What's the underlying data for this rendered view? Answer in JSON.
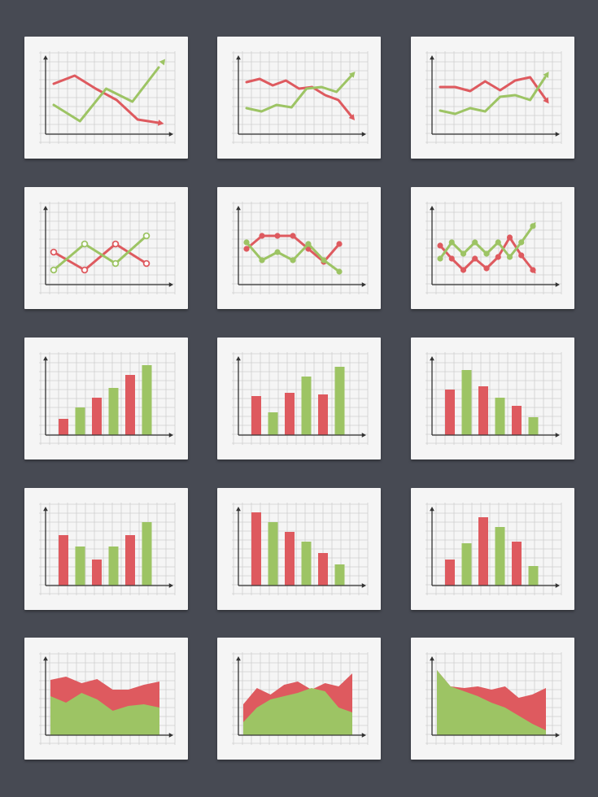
{
  "colors": {
    "background": "#474a53",
    "card": "#f5f5f5",
    "grid": "#cfcfcf",
    "axis": "#333333",
    "red": "#de5a5f",
    "green": "#9dc464"
  },
  "chart_data": [
    {
      "type": "line",
      "series": [
        {
          "color": "red",
          "values": [
            6.2,
            7.2,
            5.6,
            4.2,
            1.8,
            1.4
          ],
          "arrow": true
        },
        {
          "color": "green",
          "values": [
            3.6,
            1.6,
            5.6,
            4.0,
            8.2
          ],
          "arrow": true
        }
      ]
    },
    {
      "type": "line",
      "series": [
        {
          "color": "red",
          "values": [
            6.4,
            6.8,
            6.0,
            6.6,
            5.6,
            5.8,
            4.8,
            4.2,
            2.2
          ],
          "arrow": true
        },
        {
          "color": "green",
          "values": [
            3.2,
            2.8,
            3.6,
            3.3,
            5.6,
            5.8,
            5.2,
            7.2
          ],
          "arrow": true
        }
      ]
    },
    {
      "type": "line",
      "series": [
        {
          "color": "red",
          "values": [
            5.8,
            5.8,
            5.3,
            6.5,
            5.4,
            6.6,
            7.0,
            4.4
          ],
          "arrow": true
        },
        {
          "color": "green",
          "values": [
            2.9,
            2.5,
            3.2,
            2.8,
            4.6,
            4.8,
            4.2,
            7.0
          ],
          "arrow": true
        }
      ]
    },
    {
      "type": "line",
      "markers": true,
      "series": [
        {
          "color": "red",
          "values": [
            4.0,
            1.8,
            5.0,
            2.6
          ],
          "arrow": false
        },
        {
          "color": "green",
          "values": [
            1.8,
            5.0,
            2.6,
            6.0
          ],
          "arrow": false
        }
      ]
    },
    {
      "type": "line",
      "markers": true,
      "series": [
        {
          "color": "red",
          "values": [
            4.4,
            6.0,
            6.0,
            6.0,
            4.4,
            2.8,
            5.0
          ],
          "arrow": false
        },
        {
          "color": "green",
          "values": [
            5.2,
            3.0,
            4.0,
            3.0,
            5.0,
            3.0,
            1.6
          ],
          "arrow": false
        }
      ]
    },
    {
      "type": "line",
      "markers": true,
      "series": [
        {
          "color": "red",
          "values": [
            4.8,
            3.2,
            1.8,
            3.2,
            2.0,
            3.4,
            5.8,
            3.6,
            1.8
          ],
          "arrow": true
        },
        {
          "color": "green",
          "values": [
            3.2,
            5.2,
            3.8,
            5.2,
            3.8,
            5.2,
            3.4,
            5.2,
            7.2
          ],
          "arrow": true
        }
      ]
    },
    {
      "type": "bar",
      "colors": [
        "red",
        "green",
        "red",
        "green",
        "red",
        "green"
      ],
      "values": [
        2.0,
        3.4,
        4.6,
        5.8,
        7.4,
        8.6
      ]
    },
    {
      "type": "bar",
      "colors": [
        "red",
        "green",
        "red",
        "green",
        "red",
        "green"
      ],
      "values": [
        4.8,
        2.8,
        5.2,
        7.2,
        5.0,
        8.4
      ]
    },
    {
      "type": "bar",
      "colors": [
        "red",
        "green",
        "red",
        "green",
        "red",
        "green"
      ],
      "values": [
        5.6,
        8.0,
        6.0,
        4.6,
        3.6,
        2.2
      ]
    },
    {
      "type": "bar",
      "colors": [
        "red",
        "green",
        "red",
        "green",
        "red",
        "green"
      ],
      "values": [
        6.2,
        4.8,
        3.2,
        4.8,
        6.2,
        7.8
      ]
    },
    {
      "type": "bar",
      "colors": [
        "red",
        "green",
        "red",
        "green",
        "red",
        "green"
      ],
      "values": [
        9.0,
        7.8,
        6.6,
        5.4,
        4.0,
        2.6
      ]
    },
    {
      "type": "bar",
      "colors": [
        "red",
        "green",
        "red",
        "green",
        "red",
        "green"
      ],
      "values": [
        3.2,
        5.2,
        8.4,
        7.2,
        5.4,
        2.4
      ]
    },
    {
      "type": "area",
      "series": [
        {
          "color": "red",
          "values": [
            6.8,
            7.2,
            6.4,
            6.9,
            5.6,
            5.6,
            6.2,
            6.6
          ]
        },
        {
          "color": "green",
          "values": [
            4.8,
            4.0,
            5.2,
            4.4,
            3.0,
            3.6,
            3.8,
            3.4
          ]
        }
      ]
    },
    {
      "type": "area",
      "series": [
        {
          "color": "red",
          "values": [
            3.8,
            5.8,
            5.0,
            6.2,
            6.6,
            5.6,
            6.4,
            6.0,
            7.6
          ]
        },
        {
          "color": "green",
          "values": [
            1.6,
            3.4,
            4.4,
            4.8,
            5.2,
            5.8,
            5.4,
            3.4,
            2.8
          ]
        }
      ]
    },
    {
      "type": "area",
      "series": [
        {
          "color": "red",
          "values": [
            8.0,
            6.0,
            5.8,
            6.0,
            5.6,
            6.0,
            4.6,
            5.0,
            5.8
          ]
        },
        {
          "color": "green",
          "values": [
            8.0,
            6.0,
            5.4,
            4.8,
            4.0,
            3.4,
            2.4,
            1.4,
            0.6
          ]
        }
      ]
    }
  ]
}
